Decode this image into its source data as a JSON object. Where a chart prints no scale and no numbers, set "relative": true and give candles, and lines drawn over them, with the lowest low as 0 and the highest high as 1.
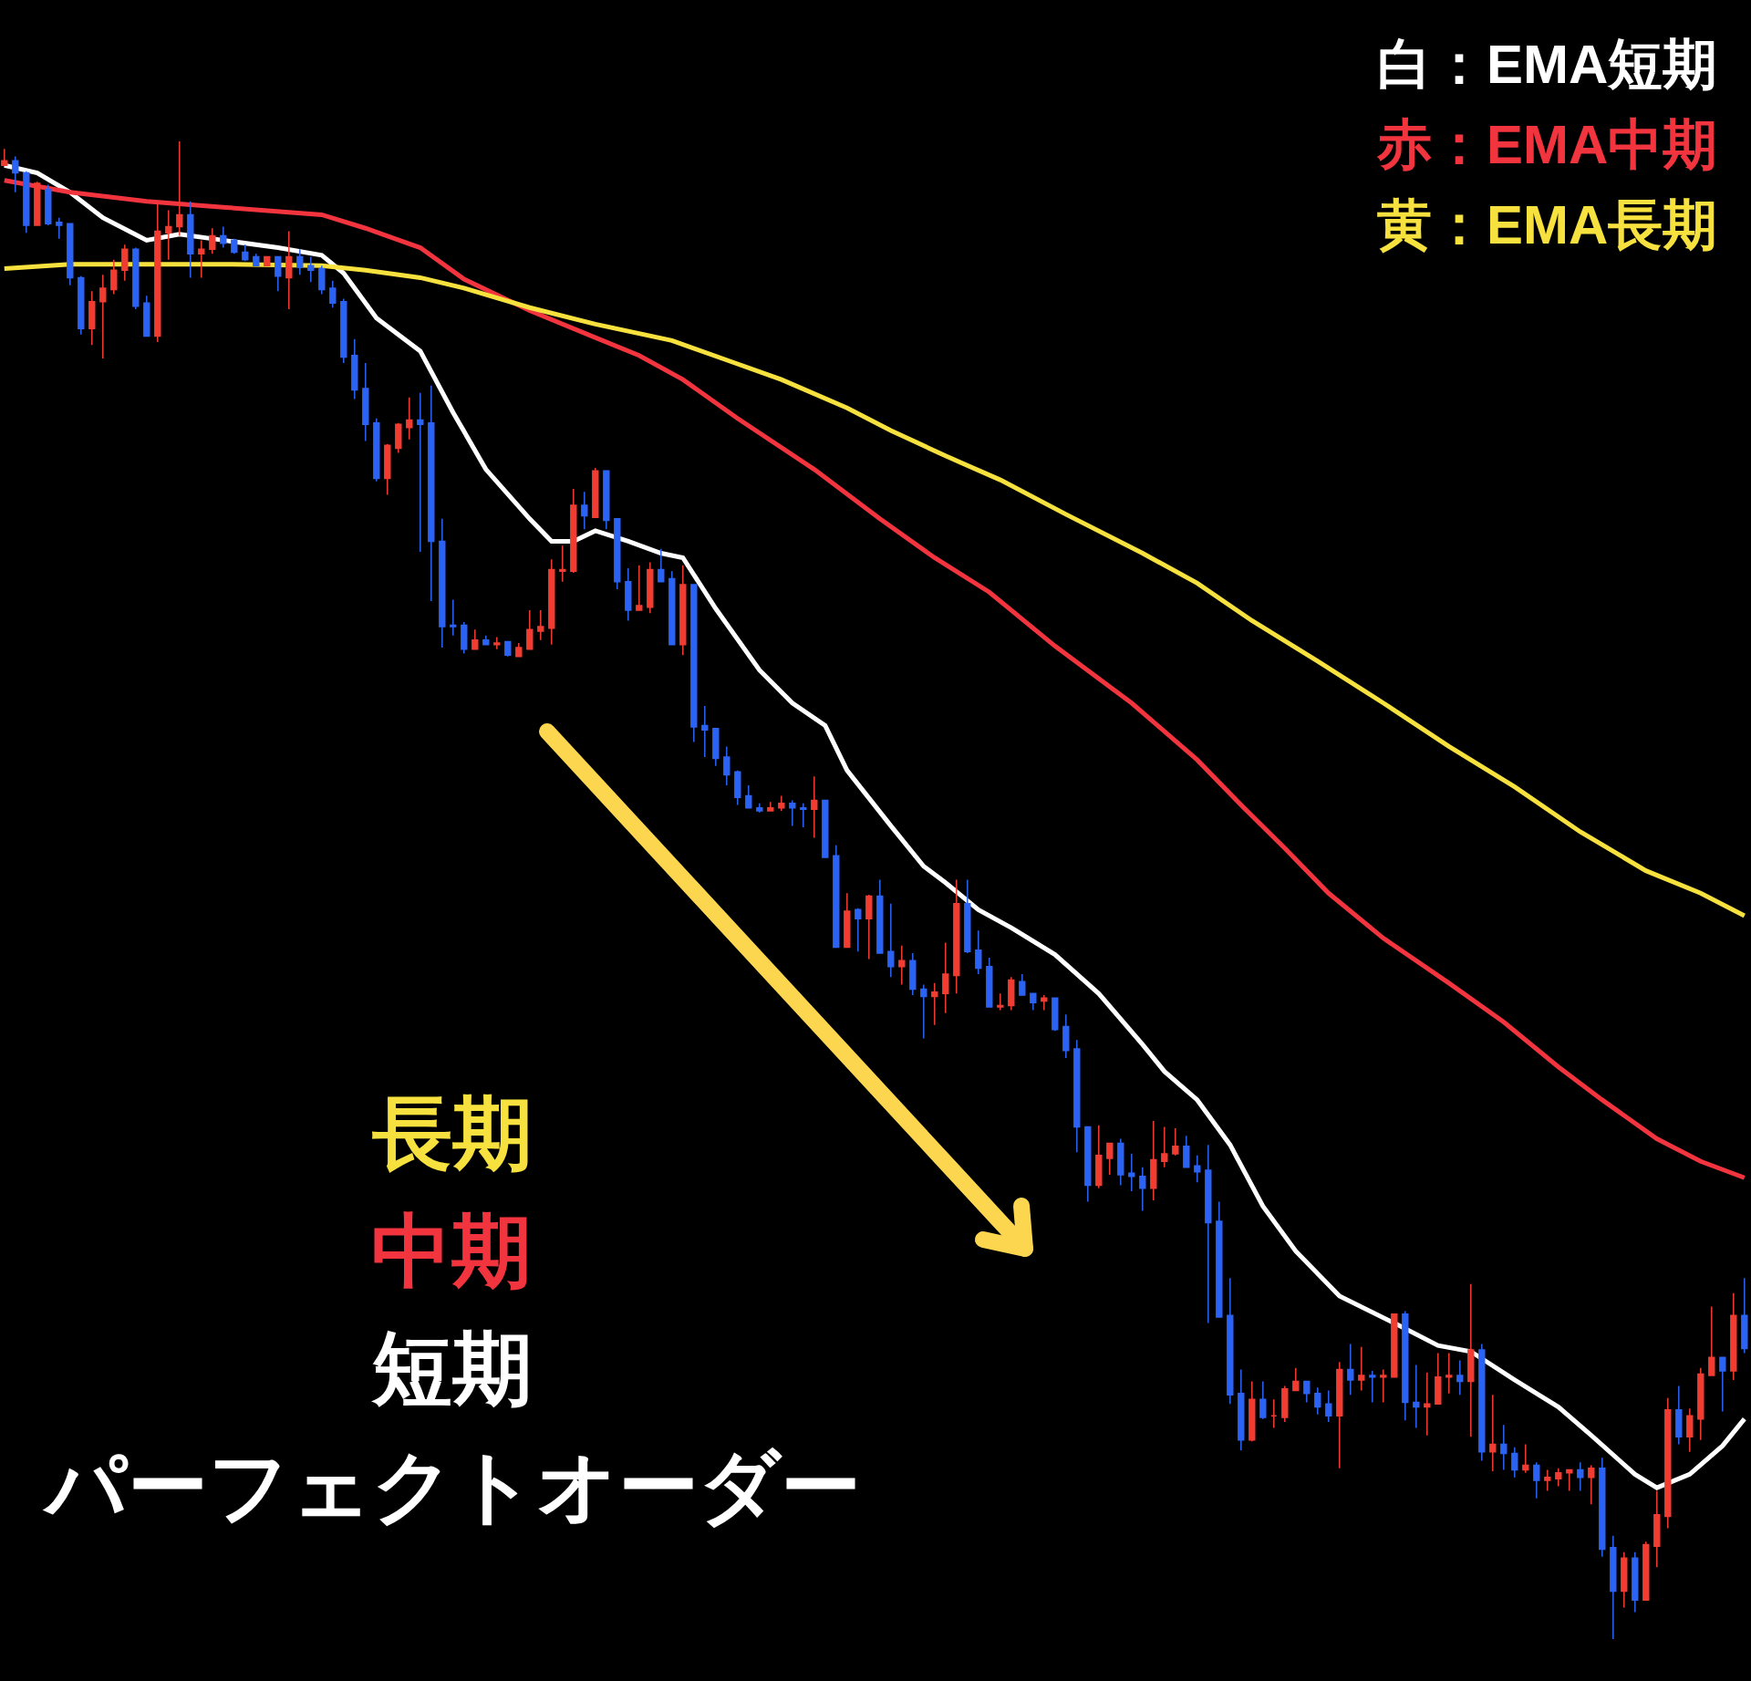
{
  "chart_data": {
    "type": "candlestick",
    "relative": true,
    "legend": false,
    "categories": [
      null,
      null,
      null,
      null,
      null,
      null,
      null,
      null,
      null,
      null,
      null,
      null,
      null,
      null,
      null,
      null,
      null,
      null,
      null,
      null,
      null,
      null,
      null,
      null,
      null,
      null,
      null,
      null,
      null,
      null,
      null,
      null,
      null,
      null,
      null,
      null,
      null,
      null,
      null,
      null,
      null,
      null,
      null,
      null,
      null,
      null,
      null,
      null,
      null,
      null,
      null,
      null,
      null,
      null,
      null,
      null,
      null,
      null,
      null,
      null,
      null,
      null,
      null,
      null,
      null,
      null,
      null,
      null,
      null,
      null,
      null,
      null,
      null,
      null,
      null,
      null,
      null,
      null,
      null,
      null,
      null,
      null,
      null,
      null,
      null,
      null,
      null,
      null,
      null,
      null,
      null,
      null,
      null,
      null,
      null,
      null,
      null,
      null,
      null,
      null,
      null,
      null,
      null,
      null,
      null,
      null,
      null,
      null,
      null,
      null,
      null,
      null,
      null,
      null,
      null,
      null,
      null,
      null,
      null,
      null,
      null,
      null,
      null,
      null,
      null,
      null,
      null,
      null,
      null,
      null,
      null,
      null,
      null,
      null,
      null,
      null,
      null,
      null,
      null,
      null,
      null,
      null,
      null,
      null,
      null,
      null,
      null,
      null,
      null,
      null,
      null,
      null,
      null,
      null,
      null,
      null,
      null,
      null,
      null,
      null
    ],
    "ohlc": [
      [
        0.984,
        0.995,
        0.984,
        0.987
      ],
      [
        0.987,
        0.99,
        0.966,
        0.979
      ],
      [
        0.979,
        0.98,
        0.939,
        0.944
      ],
      [
        0.944,
        0.973,
        0.944,
        0.972
      ],
      [
        0.968,
        0.971,
        0.944,
        0.945
      ],
      [
        0.946,
        0.949,
        0.935,
        0.944
      ],
      [
        0.945,
        0.945,
        0.904,
        0.909
      ],
      [
        0.909,
        0.91,
        0.871,
        0.875
      ],
      [
        0.875,
        0.9,
        0.864,
        0.893
      ],
      [
        0.893,
        0.911,
        0.855,
        0.902
      ],
      [
        0.901,
        0.921,
        0.898,
        0.914
      ],
      [
        0.914,
        0.931,
        0.907,
        0.928
      ],
      [
        0.928,
        0.929,
        0.888,
        0.89
      ],
      [
        0.892,
        0.897,
        0.87,
        0.87
      ],
      [
        0.87,
        0.958,
        0.866,
        0.94
      ],
      [
        0.939,
        0.954,
        0.921,
        0.943
      ],
      [
        0.943,
        1.0,
        0.937,
        0.951
      ],
      [
        0.951,
        0.96,
        0.909,
        0.925
      ],
      [
        0.925,
        0.934,
        0.909,
        0.928
      ],
      [
        0.928,
        0.942,
        0.925,
        0.937
      ],
      [
        0.937,
        0.943,
        0.929,
        0.932
      ],
      [
        0.934,
        0.935,
        0.925,
        0.926
      ],
      [
        0.926,
        0.931,
        0.92,
        0.921
      ],
      [
        0.923,
        0.925,
        0.917,
        0.917
      ],
      [
        0.917,
        0.923,
        0.917,
        0.923
      ],
      [
        0.923,
        0.923,
        0.9,
        0.91
      ],
      [
        0.909,
        0.94,
        0.888,
        0.923
      ],
      [
        0.923,
        0.928,
        0.911,
        0.916
      ],
      [
        0.917,
        0.923,
        0.906,
        0.914
      ],
      [
        0.915,
        0.917,
        0.898,
        0.901
      ],
      [
        0.902,
        0.907,
        0.889,
        0.892
      ],
      [
        0.893,
        0.895,
        0.852,
        0.856
      ],
      [
        0.857,
        0.868,
        0.828,
        0.834
      ],
      [
        0.835,
        0.852,
        0.8,
        0.811
      ],
      [
        0.812,
        0.815,
        0.773,
        0.775
      ],
      [
        0.775,
        0.798,
        0.764,
        0.797
      ],
      [
        0.795,
        0.812,
        0.792,
        0.811
      ],
      [
        0.809,
        0.829,
        0.801,
        0.814
      ],
      [
        0.814,
        0.832,
        0.726,
        0.811
      ],
      [
        0.812,
        0.837,
        0.693,
        0.733
      ],
      [
        0.733,
        0.748,
        0.662,
        0.676
      ],
      [
        0.677,
        0.694,
        0.67,
        0.676
      ],
      [
        0.677,
        0.679,
        0.658,
        0.661
      ],
      [
        0.661,
        0.674,
        0.661,
        0.667
      ],
      [
        0.667,
        0.67,
        0.664,
        0.664
      ],
      [
        0.664,
        0.669,
        0.661,
        0.665
      ],
      [
        0.666,
        0.666,
        0.656,
        0.657
      ],
      [
        0.656,
        0.665,
        0.656,
        0.662
      ],
      [
        0.661,
        0.687,
        0.661,
        0.674
      ],
      [
        0.673,
        0.687,
        0.667,
        0.676
      ],
      [
        0.675,
        0.721,
        0.664,
        0.714
      ],
      [
        0.713,
        0.73,
        0.706,
        0.714
      ],
      [
        0.713,
        0.768,
        0.712,
        0.757
      ],
      [
        0.757,
        0.766,
        0.741,
        0.75
      ],
      [
        0.749,
        0.782,
        0.749,
        0.78
      ],
      [
        0.78,
        0.78,
        0.741,
        0.747
      ],
      [
        0.748,
        0.748,
        0.701,
        0.706
      ],
      [
        0.706,
        0.715,
        0.68,
        0.687
      ],
      [
        0.687,
        0.717,
        0.687,
        0.69
      ],
      [
        0.689,
        0.719,
        0.685,
        0.714
      ],
      [
        0.714,
        0.728,
        0.706,
        0.706
      ],
      [
        0.708,
        0.713,
        0.664,
        0.664
      ],
      [
        0.664,
        0.717,
        0.657,
        0.704
      ],
      [
        0.704,
        0.704,
        0.599,
        0.609
      ],
      [
        0.61,
        0.623,
        0.589,
        0.607
      ],
      [
        0.608,
        0.608,
        0.583,
        0.588
      ],
      [
        0.589,
        0.596,
        0.57,
        0.577
      ],
      [
        0.579,
        0.58,
        0.557,
        0.562
      ],
      [
        0.563,
        0.57,
        0.555,
        0.555
      ],
      [
        0.555,
        0.558,
        0.552,
        0.553
      ],
      [
        0.553,
        0.559,
        0.553,
        0.555
      ],
      [
        0.555,
        0.563,
        0.553,
        0.558
      ],
      [
        0.558,
        0.56,
        0.543,
        0.555
      ],
      [
        0.555,
        0.558,
        0.542,
        0.554
      ],
      [
        0.554,
        0.576,
        0.535,
        0.56
      ],
      [
        0.56,
        0.56,
        0.522,
        0.522
      ],
      [
        0.523,
        0.53,
        0.462,
        0.462
      ],
      [
        0.462,
        0.498,
        0.462,
        0.486
      ],
      [
        0.487,
        0.488,
        0.459,
        0.481
      ],
      [
        0.481,
        0.497,
        0.454,
        0.496
      ],
      [
        0.496,
        0.507,
        0.458,
        0.458
      ],
      [
        0.459,
        0.491,
        0.442,
        0.449
      ],
      [
        0.449,
        0.463,
        0.437,
        0.453
      ],
      [
        0.453,
        0.458,
        0.43,
        0.434
      ],
      [
        0.434,
        0.437,
        0.401,
        0.429
      ],
      [
        0.429,
        0.438,
        0.41,
        0.432
      ],
      [
        0.431,
        0.465,
        0.418,
        0.444
      ],
      [
        0.443,
        0.507,
        0.431,
        0.491
      ],
      [
        0.491,
        0.507,
        0.458,
        0.459
      ],
      [
        0.46,
        0.473,
        0.444,
        0.448
      ],
      [
        0.449,
        0.455,
        0.422,
        0.422
      ],
      [
        0.422,
        0.431,
        0.42,
        0.423
      ],
      [
        0.423,
        0.442,
        0.42,
        0.44
      ],
      [
        0.439,
        0.444,
        0.43,
        0.43
      ],
      [
        0.431,
        0.431,
        0.42,
        0.425
      ],
      [
        0.426,
        0.43,
        0.42,
        0.428
      ],
      [
        0.428,
        0.428,
        0.406,
        0.407
      ],
      [
        0.409,
        0.417,
        0.388,
        0.393
      ],
      [
        0.394,
        0.4,
        0.325,
        0.342
      ],
      [
        0.342,
        0.342,
        0.292,
        0.303
      ],
      [
        0.303,
        0.343,
        0.301,
        0.323
      ],
      [
        0.321,
        0.331,
        0.31,
        0.331
      ],
      [
        0.331,
        0.334,
        0.303,
        0.31
      ],
      [
        0.311,
        0.324,
        0.299,
        0.309
      ],
      [
        0.309,
        0.315,
        0.286,
        0.301
      ],
      [
        0.301,
        0.346,
        0.293,
        0.32
      ],
      [
        0.319,
        0.342,
        0.315,
        0.324
      ],
      [
        0.324,
        0.341,
        0.323,
        0.329
      ],
      [
        0.329,
        0.336,
        0.315,
        0.315
      ],
      [
        0.316,
        0.323,
        0.305,
        0.312
      ],
      [
        0.313,
        0.33,
        0.211,
        0.278
      ],
      [
        0.279,
        0.292,
        0.215,
        0.215
      ],
      [
        0.216,
        0.241,
        0.157,
        0.163
      ],
      [
        0.164,
        0.18,
        0.126,
        0.133
      ],
      [
        0.133,
        0.172,
        0.132,
        0.16
      ],
      [
        0.16,
        0.172,
        0.147,
        0.148
      ],
      [
        0.149,
        0.16,
        0.141,
        0.149
      ],
      [
        0.148,
        0.169,
        0.145,
        0.167
      ],
      [
        0.166,
        0.181,
        0.166,
        0.172
      ],
      [
        0.172,
        0.172,
        0.158,
        0.164
      ],
      [
        0.164,
        0.168,
        0.15,
        0.155
      ],
      [
        0.157,
        0.166,
        0.145,
        0.149
      ],
      [
        0.149,
        0.185,
        0.114,
        0.18
      ],
      [
        0.18,
        0.197,
        0.163,
        0.173
      ],
      [
        0.173,
        0.195,
        0.166,
        0.176
      ],
      [
        0.176,
        0.179,
        0.158,
        0.175
      ],
      [
        0.175,
        0.18,
        0.158,
        0.176
      ],
      [
        0.175,
        0.217,
        0.175,
        0.217
      ],
      [
        0.217,
        0.219,
        0.146,
        0.158
      ],
      [
        0.158,
        0.183,
        0.141,
        0.155
      ],
      [
        0.155,
        0.178,
        0.136,
        0.157
      ],
      [
        0.157,
        0.191,
        0.157,
        0.175
      ],
      [
        0.175,
        0.191,
        0.164,
        0.176
      ],
      [
        0.176,
        0.186,
        0.163,
        0.172
      ],
      [
        0.172,
        0.237,
        0.135,
        0.193
      ],
      [
        0.193,
        0.197,
        0.119,
        0.125
      ],
      [
        0.125,
        0.163,
        0.112,
        0.13
      ],
      [
        0.13,
        0.143,
        0.113,
        0.124
      ],
      [
        0.124,
        0.128,
        0.108,
        0.113
      ],
      [
        0.113,
        0.13,
        0.111,
        0.116
      ],
      [
        0.116,
        0.118,
        0.094,
        0.106
      ],
      [
        0.106,
        0.113,
        0.099,
        0.108
      ],
      [
        0.107,
        0.114,
        0.102,
        0.111
      ],
      [
        0.111,
        0.113,
        0.099,
        0.113
      ],
      [
        0.113,
        0.118,
        0.099,
        0.108
      ],
      [
        0.108,
        0.116,
        0.09,
        0.114
      ],
      [
        0.114,
        0.121,
        0.055,
        0.06
      ],
      [
        0.061,
        0.069,
        0.0,
        0.032
      ],
      [
        0.032,
        0.058,
        0.021,
        0.054
      ],
      [
        0.054,
        0.058,
        0.018,
        0.026
      ],
      [
        0.026,
        0.065,
        0.026,
        0.063
      ],
      [
        0.062,
        0.099,
        0.048,
        0.083
      ],
      [
        0.082,
        0.161,
        0.074,
        0.153
      ],
      [
        0.153,
        0.169,
        0.13,
        0.135
      ],
      [
        0.135,
        0.154,
        0.125,
        0.149
      ],
      [
        0.147,
        0.181,
        0.133,
        0.177
      ],
      [
        0.176,
        0.222,
        0.176,
        0.188
      ],
      [
        0.188,
        0.188,
        0.152,
        0.179
      ],
      [
        0.179,
        0.231,
        0.173,
        0.216
      ],
      [
        0.216,
        0.241,
        0.191,
        0.194
      ]
    ],
    "series": [
      {
        "name": "白：EMA短期",
        "type": "line",
        "color": "#ffffff",
        "values": [
          0.984,
          null,
          null,
          0.979,
          null,
          null,
          0.966,
          null,
          null,
          0.949,
          null,
          null,
          null,
          0.934,
          null,
          null,
          0.938,
          null,
          null,
          null,
          0.934,
          null,
          null,
          null,
          null,
          0.929,
          null,
          null,
          null,
          0.924,
          null,
          0.912,
          null,
          null,
          0.882,
          null,
          null,
          null,
          0.86,
          null,
          null,
          0.819,
          null,
          null,
          0.781,
          null,
          null,
          null,
          0.748,
          null,
          0.733,
          null,
          0.733,
          null,
          0.74,
          null,
          null,
          0.733,
          null,
          null,
          0.725,
          null,
          0.722,
          null,
          null,
          0.688,
          null,
          null,
          null,
          0.647,
          null,
          null,
          0.625,
          null,
          null,
          0.61,
          null,
          0.58,
          null,
          null,
          null,
          0.543,
          null,
          null,
          0.516,
          null,
          0.505,
          null,
          null,
          0.487,
          null,
          null,
          0.475,
          null,
          null,
          null,
          0.457,
          null,
          null,
          null,
          0.431,
          null,
          null,
          null,
          0.397,
          null,
          0.379,
          null,
          null,
          0.36,
          null,
          null,
          0.33,
          null,
          null,
          0.289,
          null,
          null,
          0.259,
          null,
          null,
          null,
          0.229,
          null,
          null,
          null,
          null,
          0.211,
          null,
          null,
          null,
          0.196,
          null,
          null,
          0.192,
          null,
          null,
          null,
          0.173,
          null,
          null,
          null,
          0.155,
          null,
          null,
          0.136,
          null,
          null,
          null,
          0.11,
          null,
          0.101,
          null,
          null,
          0.11,
          null,
          null,
          0.129,
          null,
          0.147
        ]
      },
      {
        "name": "赤：EMA中期",
        "type": "line",
        "color": "#f2343e",
        "values": [
          0.974,
          null,
          null,
          null,
          null,
          null,
          0.966,
          null,
          null,
          null,
          null,
          null,
          null,
          0.96,
          null,
          null,
          null,
          null,
          null,
          null,
          0.956,
          null,
          null,
          null,
          null,
          null,
          null,
          null,
          null,
          0.951,
          null,
          null,
          null,
          0.942,
          null,
          null,
          null,
          null,
          0.929,
          null,
          null,
          null,
          0.908,
          null,
          null,
          null,
          null,
          null,
          0.887,
          null,
          null,
          null,
          null,
          null,
          0.869,
          null,
          null,
          null,
          0.857,
          null,
          null,
          null,
          0.841,
          null,
          null,
          null,
          null,
          0.815,
          null,
          null,
          null,
          null,
          null,
          null,
          0.781,
          null,
          null,
          null,
          null,
          null,
          0.748,
          null,
          null,
          null,
          null,
          0.722,
          null,
          null,
          null,
          null,
          0.699,
          null,
          null,
          null,
          null,
          null,
          0.663,
          null,
          null,
          null,
          null,
          null,
          null,
          0.625,
          null,
          null,
          null,
          null,
          null,
          0.587,
          null,
          null,
          null,
          0.557,
          null,
          null,
          null,
          0.528,
          null,
          null,
          null,
          0.498,
          null,
          null,
          null,
          null,
          0.468,
          null,
          null,
          null,
          null,
          null,
          0.438,
          null,
          null,
          null,
          null,
          0.412,
          null,
          null,
          null,
          null,
          0.382,
          null,
          null,
          null,
          0.36,
          null,
          null,
          null,
          null,
          0.334,
          null,
          null,
          null,
          0.319,
          null,
          null,
          null,
          0.308
        ]
      },
      {
        "name": "黄：EMA長期",
        "type": "line",
        "color": "#f7e13e",
        "values": [
          0.915,
          null,
          null,
          null,
          null,
          null,
          0.918,
          null,
          null,
          null,
          null,
          null,
          null,
          0.918,
          null,
          null,
          null,
          null,
          null,
          null,
          0.918,
          null,
          null,
          null,
          null,
          null,
          null,
          null,
          null,
          0.917,
          null,
          null,
          null,
          0.914,
          null,
          null,
          null,
          null,
          0.909,
          null,
          null,
          null,
          0.902,
          null,
          null,
          null,
          null,
          null,
          0.889,
          null,
          null,
          null,
          null,
          null,
          0.878,
          null,
          null,
          null,
          null,
          null,
          null,
          0.867,
          null,
          null,
          null,
          null,
          0.854,
          null,
          null,
          null,
          null,
          0.841,
          null,
          null,
          null,
          null,
          null,
          0.822,
          null,
          null,
          null,
          0.807,
          null,
          null,
          null,
          null,
          0.79,
          null,
          null,
          null,
          null,
          0.774,
          null,
          null,
          null,
          null,
          null,
          0.751,
          null,
          null,
          null,
          null,
          null,
          null,
          0.725,
          null,
          null,
          null,
          null,
          0.705,
          null,
          null,
          null,
          null,
          0.68,
          null,
          null,
          null,
          null,
          null,
          0.653,
          null,
          null,
          null,
          null,
          null,
          0.625,
          null,
          null,
          null,
          null,
          null,
          0.596,
          null,
          null,
          null,
          null,
          null,
          0.569,
          null,
          null,
          null,
          null,
          null,
          0.539,
          null,
          null,
          null,
          null,
          null,
          0.513,
          null,
          null,
          null,
          null,
          0.498,
          null,
          null,
          null,
          0.483
        ]
      }
    ],
    "annotations": [
      "長期",
      "中期",
      "短期",
      "パーフェクトオーダー"
    ]
  }
}
